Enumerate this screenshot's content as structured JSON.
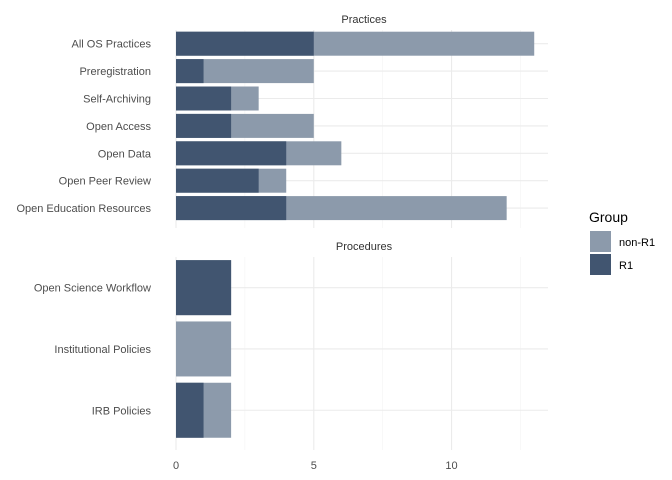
{
  "chart_data": {
    "type": "bar",
    "orientation": "horizontal",
    "stacking": "overlay",
    "x_ticks": [
      0,
      5,
      10
    ],
    "xlim": [
      0,
      13.5
    ],
    "grid": true,
    "colors": {
      "non-R1": "#8c9aab",
      "R1": "#415570"
    },
    "legend": {
      "title": "Group",
      "position": "right",
      "entries": [
        {
          "key": "non-R1",
          "label": "non-R1"
        },
        {
          "key": "R1",
          "label": "R1"
        }
      ]
    },
    "panels": [
      {
        "title": "Practices",
        "categories": [
          "All OS Practices",
          "Preregistration",
          "Self-Archiving",
          "Open Access",
          "Open Data",
          "Open Peer Review",
          "Open Education Resources"
        ],
        "series": [
          {
            "name": "non-R1",
            "values": [
              13,
              5,
              3,
              5,
              6,
              4,
              12
            ]
          },
          {
            "name": "R1",
            "values": [
              5,
              1,
              2,
              2,
              4,
              3,
              4
            ]
          }
        ]
      },
      {
        "title": "Procedures",
        "categories": [
          "Open Science Workflow",
          "Institutional Policies",
          "IRB Policies"
        ],
        "series": [
          {
            "name": "non-R1",
            "values": [
              2,
              2,
              2
            ]
          },
          {
            "name": "R1",
            "values": [
              2,
              0,
              1
            ]
          }
        ]
      }
    ]
  }
}
